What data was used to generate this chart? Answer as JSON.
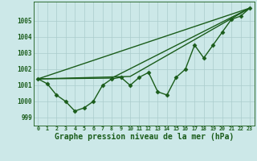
{
  "background_color": "#cce8e8",
  "plot_bg_color": "#cce8e8",
  "grid_color": "#aacccc",
  "line_color": "#1a5c1a",
  "xlabel": "Graphe pression niveau de la mer (hPa)",
  "xlabel_fontsize": 7.0,
  "ylabel_values": [
    999,
    1000,
    1001,
    1002,
    1003,
    1004,
    1005
  ],
  "xlim": [
    -0.5,
    23.5
  ],
  "ylim": [
    998.5,
    1006.2
  ],
  "xticks": [
    0,
    1,
    2,
    3,
    4,
    5,
    6,
    7,
    8,
    9,
    10,
    11,
    12,
    13,
    14,
    15,
    16,
    17,
    18,
    19,
    20,
    21,
    22,
    23
  ],
  "main_series": {
    "x": [
      0,
      1,
      2,
      3,
      4,
      5,
      6,
      7,
      8,
      9,
      10,
      11,
      12,
      13,
      14,
      15,
      16,
      17,
      18,
      19,
      20,
      21,
      22,
      23
    ],
    "y": [
      1001.4,
      1001.1,
      1000.4,
      1000.0,
      999.4,
      999.6,
      1000.0,
      1001.0,
      1001.4,
      1001.5,
      1001.0,
      1001.5,
      1001.8,
      1000.6,
      1000.4,
      1001.5,
      1002.0,
      1003.5,
      1002.7,
      1003.5,
      1004.3,
      1005.1,
      1005.3,
      1005.8
    ],
    "marker": "D",
    "markersize": 2.5,
    "linewidth": 1.0
  },
  "straight_lines": [
    {
      "x": [
        0,
        23
      ],
      "y": [
        1001.4,
        1005.8
      ],
      "linewidth": 1.0
    },
    {
      "x": [
        0,
        9,
        23
      ],
      "y": [
        1001.4,
        1001.5,
        1005.8
      ],
      "linewidth": 1.0
    },
    {
      "x": [
        0,
        9,
        23
      ],
      "y": [
        1001.4,
        1001.5,
        1005.8
      ],
      "linewidth": 1.0
    }
  ]
}
